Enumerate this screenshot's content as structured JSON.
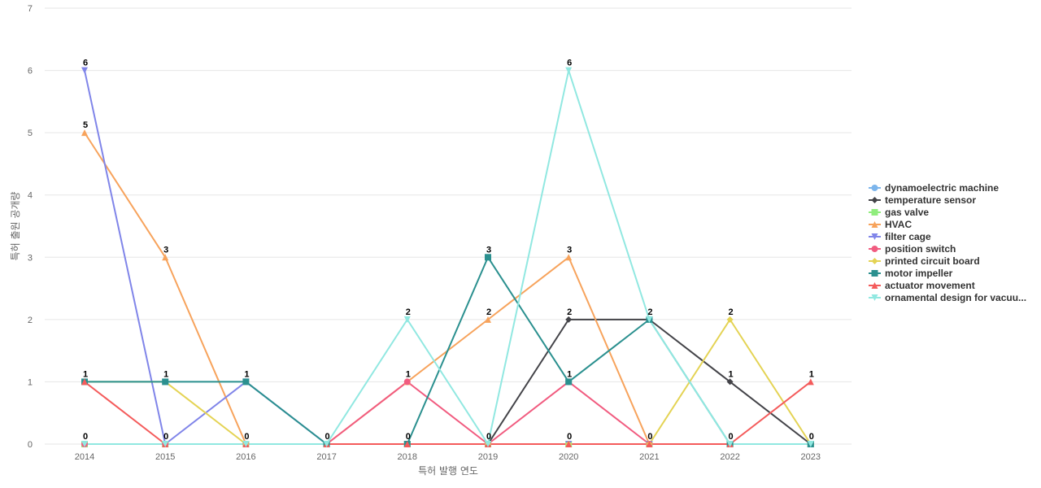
{
  "chart_data": {
    "type": "line",
    "title": "",
    "xlabel": "특허 발행 연도",
    "ylabel": "특허 출원 공개량",
    "x": [
      "2014",
      "2015",
      "2016",
      "2017",
      "2018",
      "2019",
      "2020",
      "2021",
      "2022",
      "2023"
    ],
    "ylim": [
      0,
      7
    ],
    "yticks": [
      0,
      1,
      2,
      3,
      4,
      5,
      6,
      7
    ],
    "grid": true,
    "legend_position": "right",
    "series": [
      {
        "name": "dynamoelectric machine",
        "color": "#7cb5ec",
        "marker": "circle",
        "values": [
          0,
          0,
          0,
          0,
          0,
          0,
          0,
          0,
          0,
          0
        ]
      },
      {
        "name": "temperature sensor",
        "color": "#434348",
        "marker": "diamond",
        "values": [
          0,
          0,
          0,
          0,
          0,
          0,
          2,
          2,
          1,
          0
        ]
      },
      {
        "name": "gas valve",
        "color": "#90ed7d",
        "marker": "square",
        "values": [
          0,
          0,
          0,
          0,
          0,
          0,
          0,
          0,
          0,
          0
        ]
      },
      {
        "name": "HVAC",
        "color": "#f7a35c",
        "marker": "triangle",
        "values": [
          5,
          3,
          0,
          0,
          1,
          2,
          3,
          0,
          0,
          0
        ]
      },
      {
        "name": "filter cage",
        "color": "#8085e9",
        "marker": "triangle-down",
        "values": [
          6,
          0,
          1,
          0,
          0,
          0,
          0,
          0,
          0,
          0
        ]
      },
      {
        "name": "position switch",
        "color": "#f15c80",
        "marker": "circle",
        "values": [
          0,
          0,
          0,
          0,
          1,
          0,
          1,
          0,
          0,
          0
        ]
      },
      {
        "name": "printed circuit board",
        "color": "#e4d354",
        "marker": "diamond",
        "values": [
          1,
          1,
          0,
          0,
          0,
          0,
          0,
          0,
          2,
          0
        ]
      },
      {
        "name": "motor impeller",
        "color": "#2b908f",
        "marker": "square",
        "values": [
          1,
          1,
          1,
          0,
          0,
          3,
          1,
          2,
          0,
          0
        ]
      },
      {
        "name": "actuator movement",
        "color": "#f45b5b",
        "marker": "triangle",
        "values": [
          1,
          0,
          0,
          0,
          0,
          0,
          0,
          0,
          0,
          1
        ]
      },
      {
        "name": "ornamental design for vacuu...",
        "color": "#91e8e1",
        "marker": "triangle-down",
        "values": [
          0,
          0,
          0,
          0,
          2,
          0,
          6,
          2,
          0,
          0
        ]
      }
    ],
    "data_labels": [
      {
        "x": "2014",
        "value": 6
      },
      {
        "x": "2014",
        "value": 5
      },
      {
        "x": "2014",
        "value": 1
      },
      {
        "x": "2014",
        "value": 0
      },
      {
        "x": "2015",
        "value": 3
      },
      {
        "x": "2015",
        "value": 1
      },
      {
        "x": "2015",
        "value": 0
      },
      {
        "x": "2016",
        "value": 1
      },
      {
        "x": "2016",
        "value": 0
      },
      {
        "x": "2017",
        "value": 0
      },
      {
        "x": "2018",
        "value": 2
      },
      {
        "x": "2018",
        "value": 1
      },
      {
        "x": "2018",
        "value": 0
      },
      {
        "x": "2019",
        "value": 3
      },
      {
        "x": "2019",
        "value": 2
      },
      {
        "x": "2019",
        "value": 0
      },
      {
        "x": "2020",
        "value": 6
      },
      {
        "x": "2020",
        "value": 3
      },
      {
        "x": "2020",
        "value": 2
      },
      {
        "x": "2020",
        "value": 1
      },
      {
        "x": "2020",
        "value": 0
      },
      {
        "x": "2021",
        "value": 2
      },
      {
        "x": "2021",
        "value": 0
      },
      {
        "x": "2022",
        "value": 2
      },
      {
        "x": "2022",
        "value": 1
      },
      {
        "x": "2022",
        "value": 0
      },
      {
        "x": "2023",
        "value": 1
      },
      {
        "x": "2023",
        "value": 0
      }
    ]
  }
}
